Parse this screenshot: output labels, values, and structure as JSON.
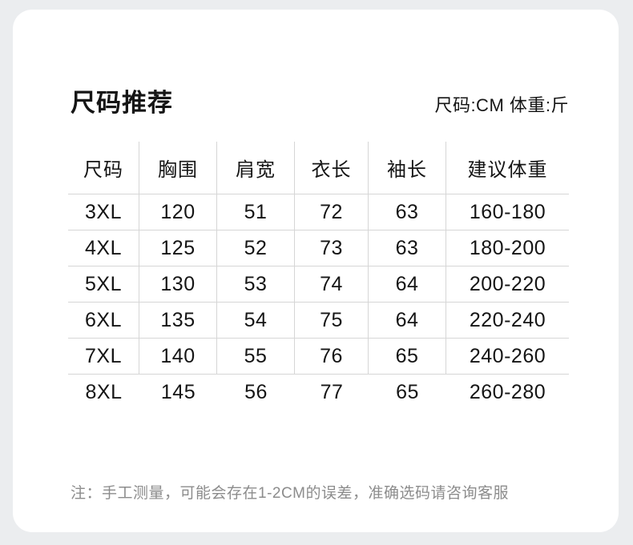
{
  "header": {
    "title": "尺码推荐",
    "units": "尺码:CM 体重:斤"
  },
  "table": {
    "columns": [
      "尺码",
      "胸围",
      "肩宽",
      "衣长",
      "袖长",
      "建议体重"
    ],
    "rows": [
      [
        "3XL",
        "120",
        "51",
        "72",
        "63",
        "160-180"
      ],
      [
        "4XL",
        "125",
        "52",
        "73",
        "63",
        "180-200"
      ],
      [
        "5XL",
        "130",
        "53",
        "74",
        "64",
        "200-220"
      ],
      [
        "6XL",
        "135",
        "54",
        "75",
        "64",
        "220-240"
      ],
      [
        "7XL",
        "140",
        "55",
        "76",
        "65",
        "240-260"
      ],
      [
        "8XL",
        "145",
        "56",
        "77",
        "65",
        "260-280"
      ]
    ]
  },
  "footer": {
    "note": "注：手工测量，可能会存在1-2CM的误差，准确选码请咨询客服"
  },
  "colors": {
    "background": "#ebedef",
    "card": "#ffffff",
    "text": "#151515",
    "note_text": "#8c8c8c",
    "divider": "#d6d6d6"
  }
}
